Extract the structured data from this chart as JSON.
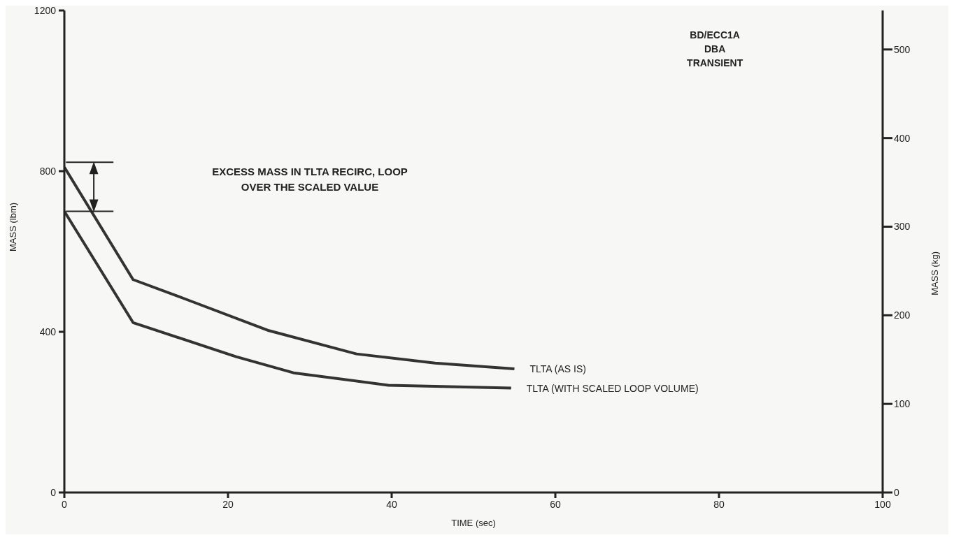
{
  "chart_data": {
    "type": "line",
    "xlabel": "TIME (sec)",
    "ylabel": "MASS (lbm)",
    "y2label": "MASS (kg)",
    "xlim": [
      0,
      100
    ],
    "xticks": [
      0,
      20,
      40,
      60,
      80,
      100
    ],
    "ylim": [
      0,
      1200
    ],
    "yticks": [
      0,
      400,
      800,
      1200
    ],
    "y2lim": [
      0,
      544
    ],
    "y2ticks": [
      0,
      100,
      200,
      300,
      400,
      500
    ],
    "marker": "none",
    "line_style": "solid",
    "series": [
      {
        "name": "TLTA (AS IS)",
        "color": "#333333",
        "x": [
          0,
          8.4,
          15,
          25,
          35.7,
          45.3,
          55
        ],
        "values": [
          810,
          530,
          480,
          403,
          345,
          322,
          308
        ]
      },
      {
        "name": "TLTA (WITH SCALED LOOP VOLUME)",
        "color": "#333333",
        "x": [
          0,
          8.4,
          21,
          28,
          39.6,
          54.6
        ],
        "values": [
          700,
          423,
          338,
          298,
          267,
          260
        ]
      }
    ],
    "annotations": [
      "EXCESS MASS IN TLTA RECIRC, LOOP\nOVER THE SCALED VALUE",
      "BD/ECC1A\nDBA\nTRANSIENT"
    ]
  }
}
